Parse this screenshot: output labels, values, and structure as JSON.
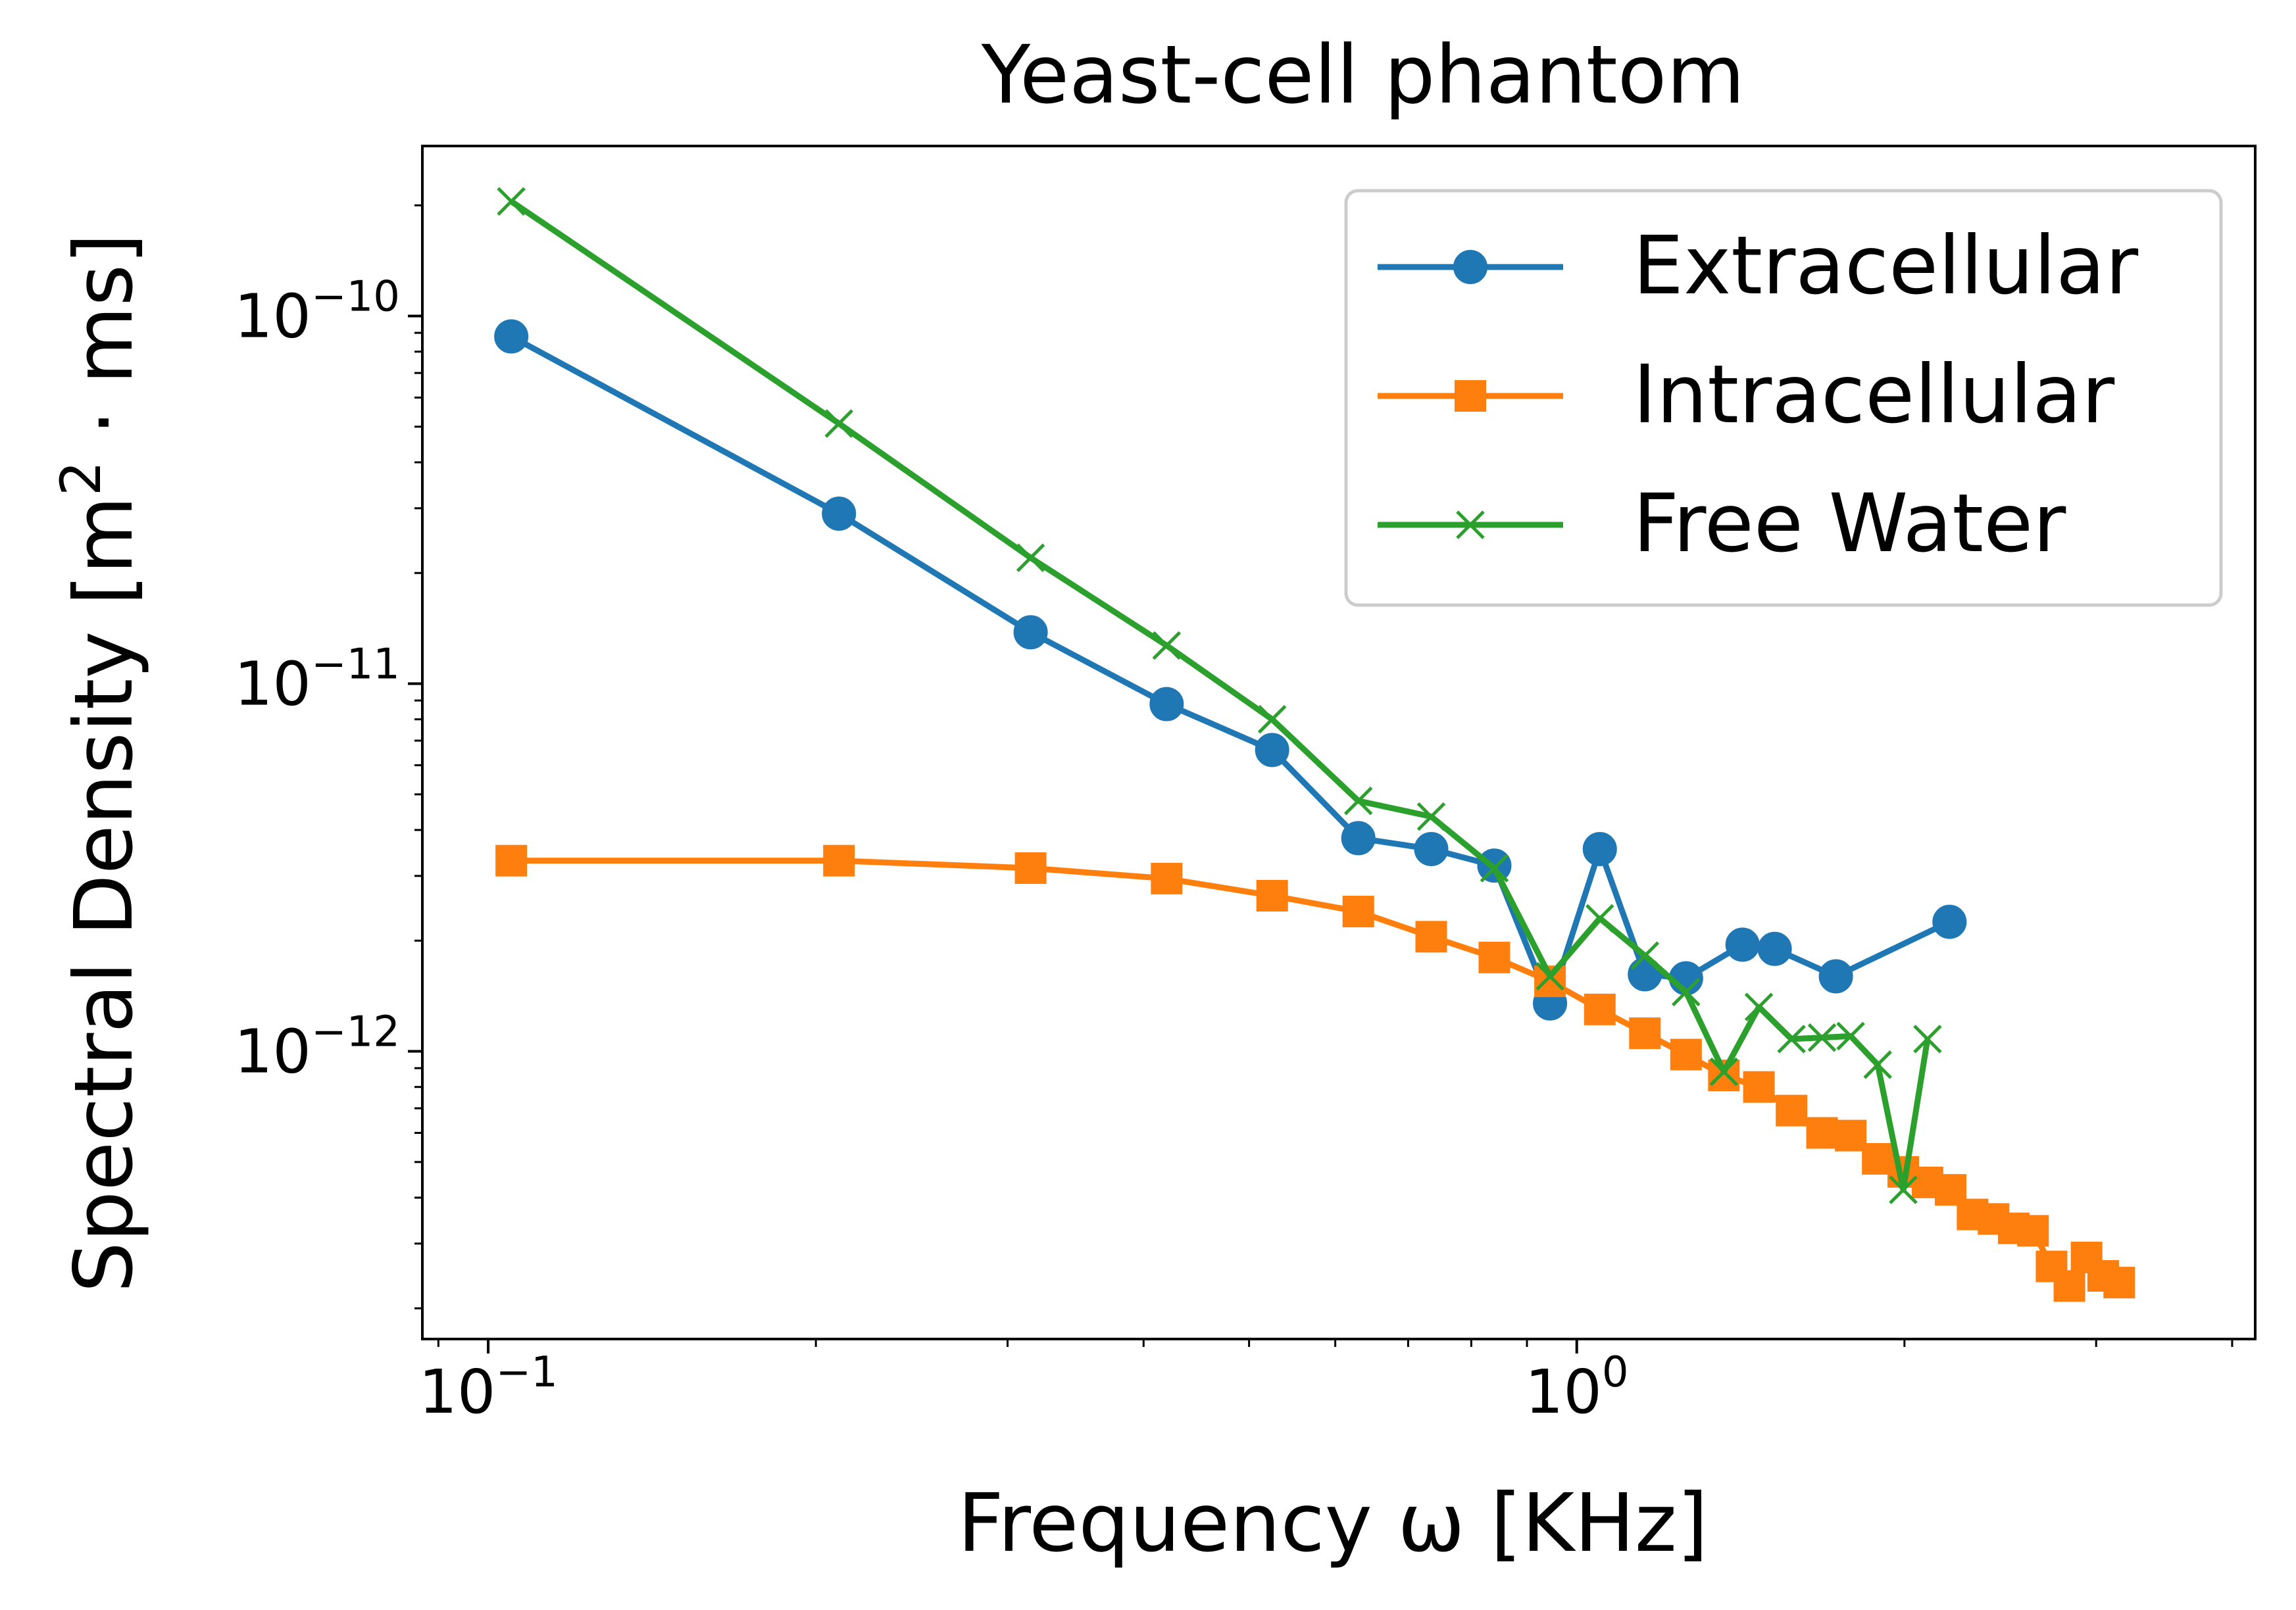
{
  "chart_data": {
    "type": "line",
    "title": "Yeast-cell phantom",
    "xlabel": "Frequency ω [KHz]",
    "ylabel_prefix": "Spectral Density [m",
    "ylabel_sup": "2",
    "ylabel_suffix": " · ms]",
    "x_scale": "log",
    "y_scale": "log",
    "xlim": [
      0.087,
      4.2
    ],
    "ylim": [
      1.65e-13,
      2.9e-10
    ],
    "x_ticks": [
      {
        "value": 0.1,
        "base": "10",
        "exp": "−1"
      },
      {
        "value": 1,
        "base": "10",
        "exp": "0"
      }
    ],
    "y_ticks": [
      {
        "value": 1e-10,
        "base": "10",
        "exp": "−10"
      },
      {
        "value": 1e-11,
        "base": "10",
        "exp": "−11"
      },
      {
        "value": 1e-12,
        "base": "10",
        "exp": "−12"
      }
    ],
    "grid": false,
    "legend_position": "top-right",
    "series": [
      {
        "name": "Extracellular",
        "color": "#1f77b4",
        "marker": "circle",
        "x": [
          0.105,
          0.21,
          0.315,
          0.42,
          0.525,
          0.63,
          0.735,
          0.84,
          0.945,
          1.05,
          1.155,
          1.26,
          1.42,
          1.52,
          1.73,
          2.2
        ],
        "y": [
          8.8e-11,
          2.9e-11,
          1.38e-11,
          8.8e-12,
          6.6e-12,
          3.8e-12,
          3.55e-12,
          3.2e-12,
          1.35e-12,
          3.55e-12,
          1.62e-12,
          1.58e-12,
          1.95e-12,
          1.9e-12,
          1.6e-12,
          2.25e-12
        ]
      },
      {
        "name": "Intracellular",
        "color": "#ff7f0e",
        "marker": "square",
        "x": [
          0.105,
          0.21,
          0.315,
          0.42,
          0.525,
          0.63,
          0.735,
          0.84,
          0.945,
          1.05,
          1.155,
          1.26,
          1.365,
          1.47,
          1.575,
          1.68,
          1.785,
          1.89,
          1.995,
          2.1,
          2.205,
          2.31,
          2.415,
          2.52,
          2.625,
          2.73,
          2.835,
          2.94,
          3.045,
          3.15
        ],
        "y": [
          3.3e-12,
          3.3e-12,
          3.15e-12,
          2.95e-12,
          2.65e-12,
          2.4e-12,
          2.05e-12,
          1.8e-12,
          1.55e-12,
          1.3e-12,
          1.12e-12,
          9.8e-13,
          8.6e-13,
          8e-13,
          6.9e-13,
          6e-13,
          5.9e-13,
          5.1e-13,
          4.7e-13,
          4.4e-13,
          4.2e-13,
          3.6e-13,
          3.5e-13,
          3.3e-13,
          3.25e-13,
          2.6e-13,
          2.3e-13,
          2.75e-13,
          2.45e-13,
          2.35e-13
        ]
      },
      {
        "name": "Free Water",
        "color": "#2ca02c",
        "marker": "x",
        "x": [
          0.105,
          0.21,
          0.315,
          0.42,
          0.525,
          0.63,
          0.735,
          0.84,
          0.945,
          1.05,
          1.155,
          1.26,
          1.365,
          1.47,
          1.575,
          1.68,
          1.785,
          1.89,
          1.995,
          2.1
        ],
        "y": [
          2.05e-10,
          5.1e-11,
          2.2e-11,
          1.27e-11,
          8e-12,
          4.8e-12,
          4.35e-12,
          3.15e-12,
          1.6e-12,
          2.3e-12,
          1.82e-12,
          1.45e-12,
          8.8e-13,
          1.32e-12,
          1.08e-12,
          1.09e-12,
          1.1e-12,
          9.2e-13,
          4.2e-13,
          1.08e-12
        ]
      }
    ]
  }
}
